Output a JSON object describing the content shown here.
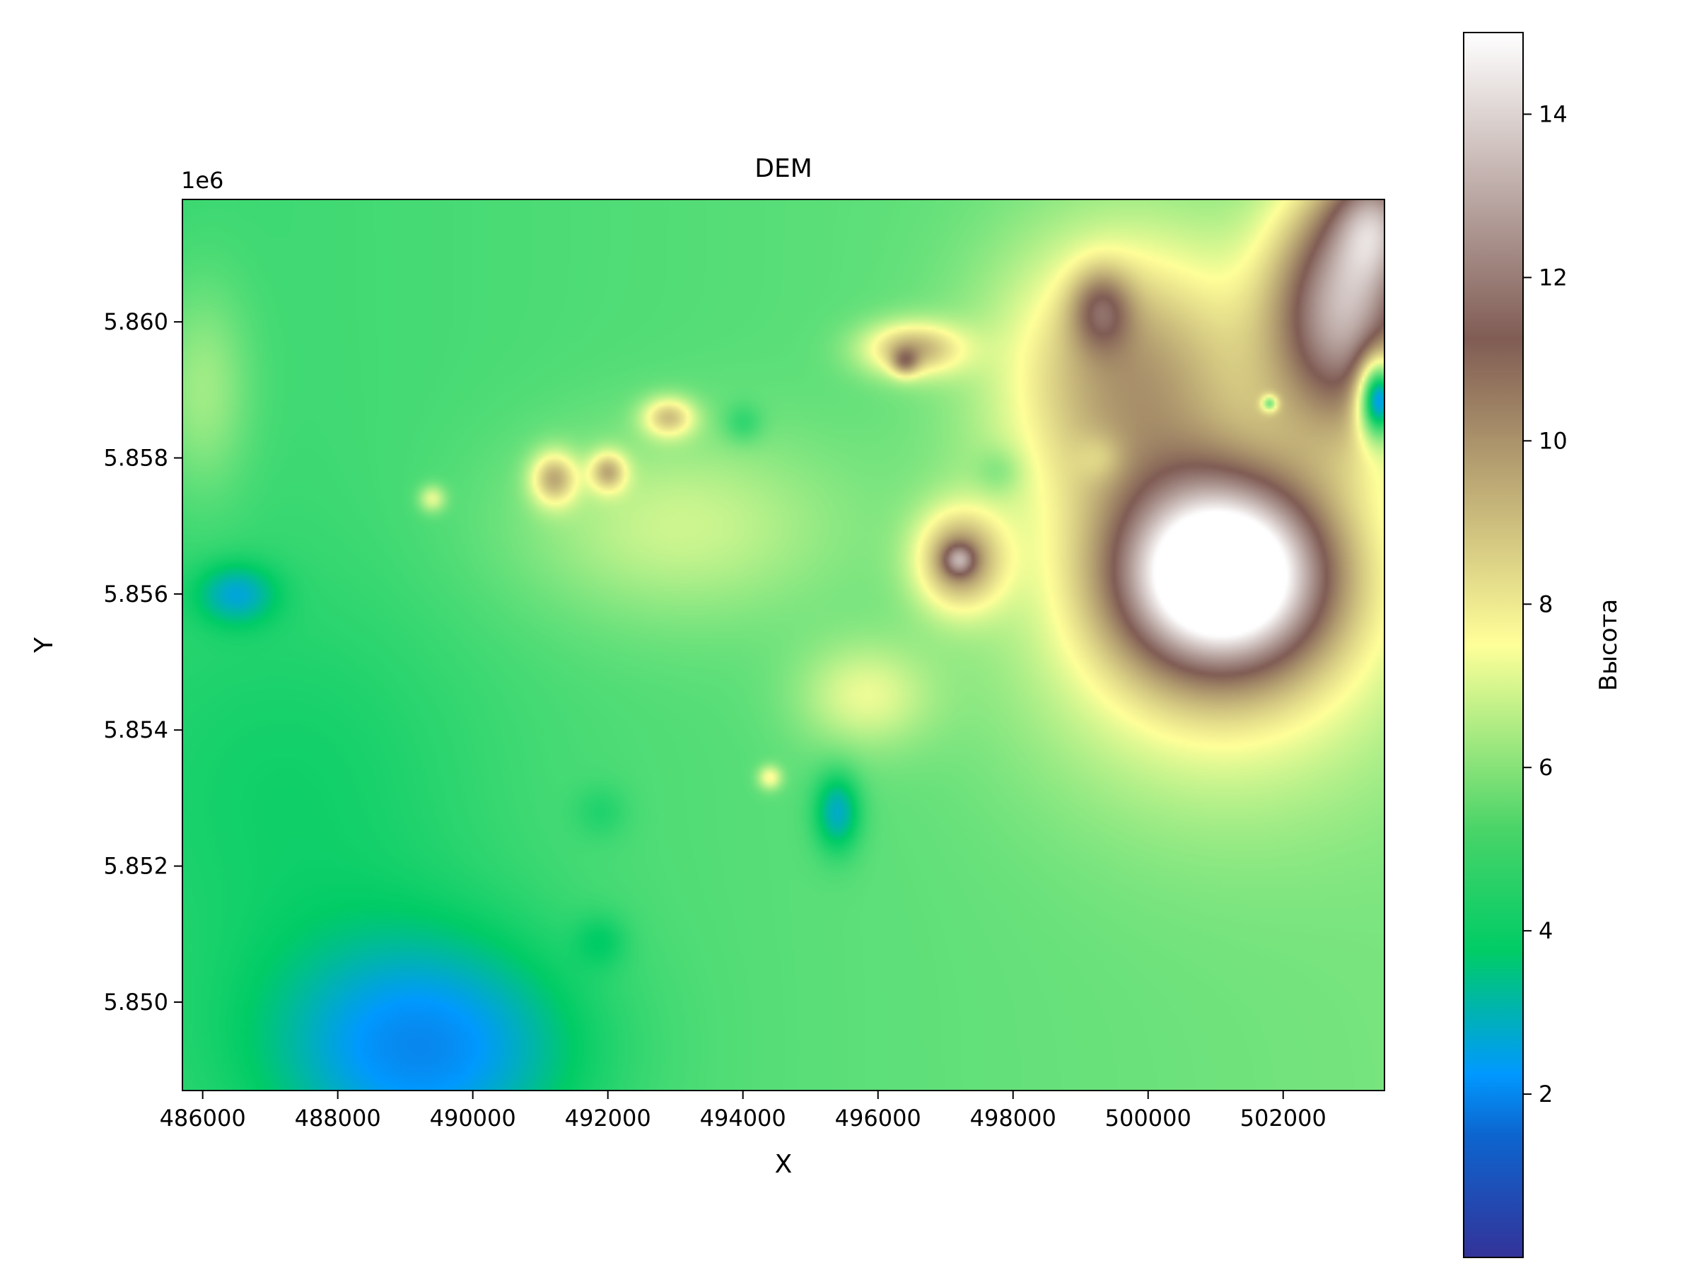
{
  "chart_data": {
    "type": "heatmap",
    "title": "DEM",
    "xlabel": "X",
    "ylabel": "Y",
    "y_offset_text": "1e6",
    "xlim": [
      485700,
      503500
    ],
    "ylim": [
      5848700,
      5861800
    ],
    "x_ticks": [
      {
        "value": 486000,
        "label": "486000"
      },
      {
        "value": 488000,
        "label": "488000"
      },
      {
        "value": 490000,
        "label": "490000"
      },
      {
        "value": 492000,
        "label": "492000"
      },
      {
        "value": 494000,
        "label": "494000"
      },
      {
        "value": 496000,
        "label": "496000"
      },
      {
        "value": 498000,
        "label": "498000"
      },
      {
        "value": 500000,
        "label": "500000"
      },
      {
        "value": 502000,
        "label": "502000"
      }
    ],
    "y_ticks": [
      {
        "value": 5850000,
        "label": "5.850"
      },
      {
        "value": 5852000,
        "label": "5.852"
      },
      {
        "value": 5854000,
        "label": "5.854"
      },
      {
        "value": 5856000,
        "label": "5.856"
      },
      {
        "value": 5858000,
        "label": "5.858"
      },
      {
        "value": 5860000,
        "label": "5.860"
      }
    ],
    "colorbar": {
      "label": "Высота",
      "colormap": "terrain",
      "range": [
        0,
        15
      ],
      "ticks": [
        {
          "value": 2,
          "label": "2"
        },
        {
          "value": 4,
          "label": "4"
        },
        {
          "value": 6,
          "label": "6"
        },
        {
          "value": 8,
          "label": "8"
        },
        {
          "value": 10,
          "label": "10"
        },
        {
          "value": 12,
          "label": "12"
        },
        {
          "value": 14,
          "label": "14"
        }
      ]
    },
    "background_level": 4.6,
    "surface_features": [
      {
        "x": 501100,
        "y": 5856300,
        "sx": 1500,
        "sy": 1350,
        "h": 10.2
      },
      {
        "x": 501000,
        "y": 5855700,
        "sx": 2800,
        "sy": 2600,
        "h": 3.2
      },
      {
        "x": 502900,
        "y": 5860200,
        "sx": 1100,
        "sy": 1800,
        "h": 7.5
      },
      {
        "x": 503400,
        "y": 5861500,
        "sx": 650,
        "sy": 900,
        "h": 4.5
      },
      {
        "x": 499700,
        "y": 5859300,
        "sx": 1900,
        "sy": 2000,
        "h": 4.2
      },
      {
        "x": 497200,
        "y": 5856500,
        "sx": 650,
        "sy": 750,
        "h": 4.5
      },
      {
        "x": 497200,
        "y": 5856500,
        "sx": 230,
        "sy": 230,
        "h": 3.0
      },
      {
        "x": 496500,
        "y": 5859600,
        "sx": 750,
        "sy": 400,
        "h": 4.0
      },
      {
        "x": 496400,
        "y": 5859400,
        "sx": 200,
        "sy": 200,
        "h": 2.5
      },
      {
        "x": 499300,
        "y": 5860200,
        "sx": 450,
        "sy": 600,
        "h": 3.0
      },
      {
        "x": 491200,
        "y": 5857700,
        "sx": 350,
        "sy": 400,
        "h": 3.8
      },
      {
        "x": 492000,
        "y": 5857800,
        "sx": 280,
        "sy": 300,
        "h": 3.5
      },
      {
        "x": 492900,
        "y": 5858600,
        "sx": 400,
        "sy": 300,
        "h": 3.5
      },
      {
        "x": 493000,
        "y": 5857000,
        "sx": 2400,
        "sy": 1400,
        "h": 1.8
      },
      {
        "x": 489400,
        "y": 5857400,
        "sx": 200,
        "sy": 200,
        "h": 2.2
      },
      {
        "x": 494400,
        "y": 5853300,
        "sx": 180,
        "sy": 180,
        "h": 2.5
      },
      {
        "x": 495800,
        "y": 5854500,
        "sx": 1000,
        "sy": 800,
        "h": 2.0
      },
      {
        "x": 503400,
        "y": 5858900,
        "sx": 300,
        "sy": 600,
        "h": -7.0
      },
      {
        "x": 495400,
        "y": 5852800,
        "sx": 350,
        "sy": 600,
        "h": -2.3
      },
      {
        "x": 489300,
        "y": 5849300,
        "sx": 2300,
        "sy": 1700,
        "h": -2.8
      },
      {
        "x": 486500,
        "y": 5856000,
        "sx": 600,
        "sy": 450,
        "h": -1.8
      },
      {
        "x": 487500,
        "y": 5853000,
        "sx": 2800,
        "sy": 3000,
        "h": -0.7
      },
      {
        "x": 494000,
        "y": 5858500,
        "sx": 300,
        "sy": 300,
        "h": -1.0
      },
      {
        "x": 497800,
        "y": 5857800,
        "sx": 350,
        "sy": 350,
        "h": -0.9
      },
      {
        "x": 499300,
        "y": 5858000,
        "sx": 350,
        "sy": 350,
        "h": -0.9
      },
      {
        "x": 491900,
        "y": 5850900,
        "sx": 400,
        "sy": 400,
        "h": -0.8
      },
      {
        "x": 491900,
        "y": 5852800,
        "sx": 400,
        "sy": 400,
        "h": -0.6
      },
      {
        "x": 501800,
        "y": 5858800,
        "sx": 120,
        "sy": 120,
        "h": -3.5
      },
      {
        "x": 486000,
        "y": 5859000,
        "sx": 700,
        "sy": 1500,
        "h": 1.5
      }
    ]
  }
}
